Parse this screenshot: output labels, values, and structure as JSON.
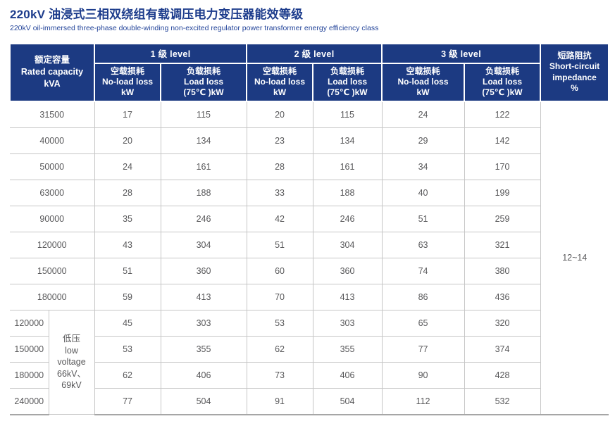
{
  "page": {
    "title_zh": "220kV 油浸式三相双绕组有载调压电力变压器能效等级",
    "title_en": "220kV oil-immersed three-phase double-winding non-excited regulator power transformer energy efficiency class"
  },
  "colors": {
    "header_bg": "#1c3a82",
    "title_text": "#1d3c8c",
    "body_text": "#58585a",
    "grid_line": "#c6c6c6"
  },
  "table": {
    "header": {
      "capacity": {
        "zh": "额定容量",
        "en": "Rated capacity",
        "unit": "kVA"
      },
      "levels": [
        "1 级 level",
        "2 级 level",
        "3 级 level"
      ],
      "no_load": {
        "zh": "空载损耗",
        "en": "No-load loss",
        "unit": "kW"
      },
      "load": {
        "zh": "负载损耗",
        "en": "Load loss",
        "unit": "(75℃ )kW"
      },
      "impedance": {
        "zh": "短路阻抗",
        "en1": "Short-circuit",
        "en2": "impedance",
        "unit": "%"
      }
    },
    "rows_main": [
      [
        "31500",
        "17",
        "115",
        "20",
        "115",
        "24",
        "122"
      ],
      [
        "40000",
        "20",
        "134",
        "23",
        "134",
        "29",
        "142"
      ],
      [
        "50000",
        "24",
        "161",
        "28",
        "161",
        "34",
        "170"
      ],
      [
        "63000",
        "28",
        "188",
        "33",
        "188",
        "40",
        "199"
      ],
      [
        "90000",
        "35",
        "246",
        "42",
        "246",
        "51",
        "259"
      ],
      [
        "120000",
        "43",
        "304",
        "51",
        "304",
        "63",
        "321"
      ],
      [
        "150000",
        "51",
        "360",
        "60",
        "360",
        "74",
        "380"
      ],
      [
        "180000",
        "59",
        "413",
        "70",
        "413",
        "86",
        "436"
      ]
    ],
    "rows_lv": [
      [
        "120000",
        "45",
        "303",
        "53",
        "303",
        "65",
        "320"
      ],
      [
        "150000",
        "53",
        "355",
        "62",
        "355",
        "77",
        "374"
      ],
      [
        "180000",
        "62",
        "406",
        "73",
        "406",
        "90",
        "428"
      ],
      [
        "240000",
        "77",
        "504",
        "91",
        "504",
        "112",
        "532"
      ]
    ],
    "lv_label": [
      "低压",
      "low",
      "voltage",
      "66kV、",
      "69kV"
    ],
    "impedance_value": "12~14"
  }
}
